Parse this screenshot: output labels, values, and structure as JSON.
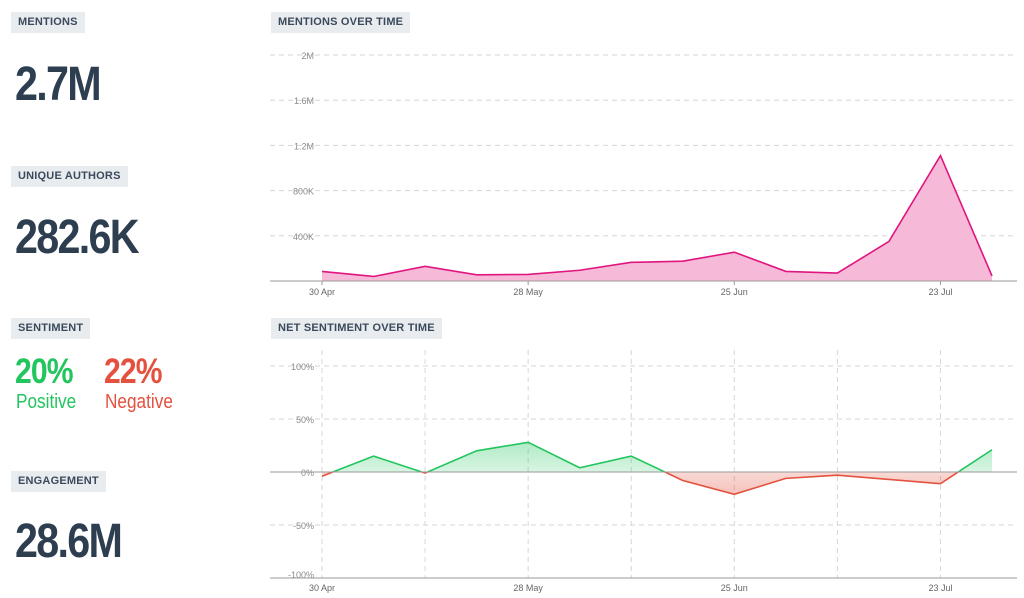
{
  "metrics": {
    "mentions": {
      "label": "MENTIONS",
      "value": "2.7M"
    },
    "unique_authors": {
      "label": "UNIQUE AUTHORS",
      "value": "282.6K"
    },
    "sentiment": {
      "label": "SENTIMENT",
      "positive_pct": "20%",
      "positive_label": "Positive",
      "negative_pct": "22%",
      "negative_label": "Negative"
    },
    "engagement": {
      "label": "ENGAGEMENT",
      "value": "28.6M"
    }
  },
  "colors": {
    "positive": "#22c55e",
    "negative": "#e4513f",
    "mentions_line": "#e0157f",
    "mentions_fill": "#f6b6d6"
  },
  "chart_data": [
    {
      "type": "area",
      "title": "MENTIONS OVER TIME",
      "x_tick_labels": [
        "30 Apr",
        "28 May",
        "25 Jun",
        "23 Jul"
      ],
      "y_tick_labels": [
        "400K",
        "800K",
        "1.2M",
        "1.6M",
        "2M"
      ],
      "y_ticks": [
        400000,
        800000,
        1200000,
        1600000,
        2000000
      ],
      "ylim": [
        0,
        2000000
      ],
      "grid": true,
      "x_points": 14,
      "tick_positions": [
        0,
        4,
        8,
        12
      ],
      "series": [
        {
          "values": [
            85000,
            40000,
            130000,
            55000,
            58000,
            95000,
            165000,
            175000,
            255000,
            85000,
            70000,
            350000,
            1110000,
            45000
          ]
        }
      ]
    },
    {
      "type": "line",
      "title": "NET SENTIMENT OVER TIME",
      "x_tick_labels": [
        "30 Apr",
        "28 May",
        "25 Jun",
        "23 Jul"
      ],
      "y_tick_labels": [
        "100%",
        "50%",
        "0%",
        "-50%",
        "-100%"
      ],
      "y_ticks": [
        100,
        50,
        0,
        -50,
        -100
      ],
      "ylim": [
        -100,
        100
      ],
      "grid": true,
      "x_points": 14,
      "tick_positions": [
        0,
        4,
        8,
        12
      ],
      "series": [
        {
          "values": [
            -4,
            15,
            -1,
            20,
            28,
            4,
            15,
            -8,
            -21,
            -6,
            -3,
            -7,
            -11,
            21
          ]
        }
      ]
    }
  ]
}
